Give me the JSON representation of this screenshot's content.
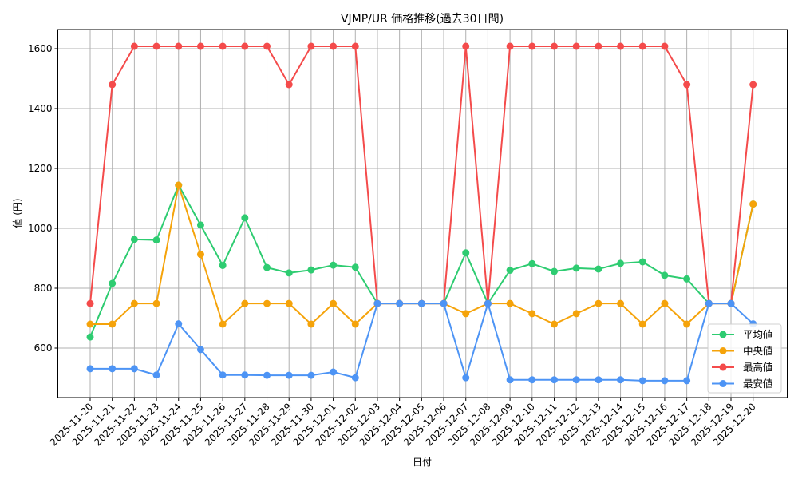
{
  "chart_data": {
    "type": "line",
    "title": "VJMP/UR 価格推移(過去30日間)",
    "xlabel": "日付",
    "ylabel": "値 (円)",
    "ylim": [
      435,
      1665
    ],
    "yticks": [
      600,
      800,
      1000,
      1200,
      1400,
      1600
    ],
    "grid": true,
    "legend_position": "lower right",
    "categories": [
      "2025-11-20",
      "2025-11-21",
      "2025-11-22",
      "2025-11-23",
      "2025-11-24",
      "2025-11-25",
      "2025-11-26",
      "2025-11-27",
      "2025-11-28",
      "2025-11-29",
      "2025-11-30",
      "2025-12-01",
      "2025-12-02",
      "2025-12-03",
      "2025-12-04",
      "2025-12-05",
      "2025-12-06",
      "2025-12-07",
      "2025-12-08",
      "2025-12-09",
      "2025-12-10",
      "2025-12-11",
      "2025-12-12",
      "2025-12-13",
      "2025-12-14",
      "2025-12-15",
      "2025-12-16",
      "2025-12-17",
      "2025-12-18",
      "2025-12-19",
      "2025-12-20"
    ],
    "series": [
      {
        "name": "平均値",
        "color": "#2ecc71",
        "values": [
          637,
          816,
          963,
          961,
          1144,
          1011,
          876,
          1035,
          869,
          851,
          861,
          877,
          870,
          749,
          749,
          749,
          749,
          918,
          749,
          860,
          882,
          856,
          867,
          864,
          883,
          888,
          843,
          831,
          749,
          749,
          1081
        ]
      },
      {
        "name": "中央値",
        "color": "#f5a30a",
        "values": [
          680,
          680,
          749,
          749,
          1144,
          913,
          680,
          749,
          749,
          749,
          680,
          749,
          680,
          749,
          749,
          749,
          749,
          715,
          749,
          749,
          715,
          680,
          715,
          749,
          749,
          680,
          749,
          680,
          749,
          749,
          1081
        ]
      },
      {
        "name": "最高値",
        "color": "#f44b4b",
        "values": [
          749,
          1480,
          1608,
          1608,
          1608,
          1608,
          1608,
          1608,
          1608,
          1480,
          1608,
          1608,
          1608,
          749,
          749,
          749,
          749,
          1608,
          749,
          1608,
          1608,
          1608,
          1608,
          1608,
          1608,
          1608,
          1608,
          1480,
          749,
          749,
          1480
        ]
      },
      {
        "name": "最安値",
        "color": "#4d94f5",
        "values": [
          531,
          531,
          531,
          510,
          681,
          595,
          510,
          510,
          509,
          509,
          509,
          520,
          501,
          749,
          749,
          749,
          749,
          501,
          749,
          494,
          494,
          494,
          494,
          494,
          494,
          491,
          491,
          491,
          749,
          749,
          681
        ]
      }
    ]
  }
}
